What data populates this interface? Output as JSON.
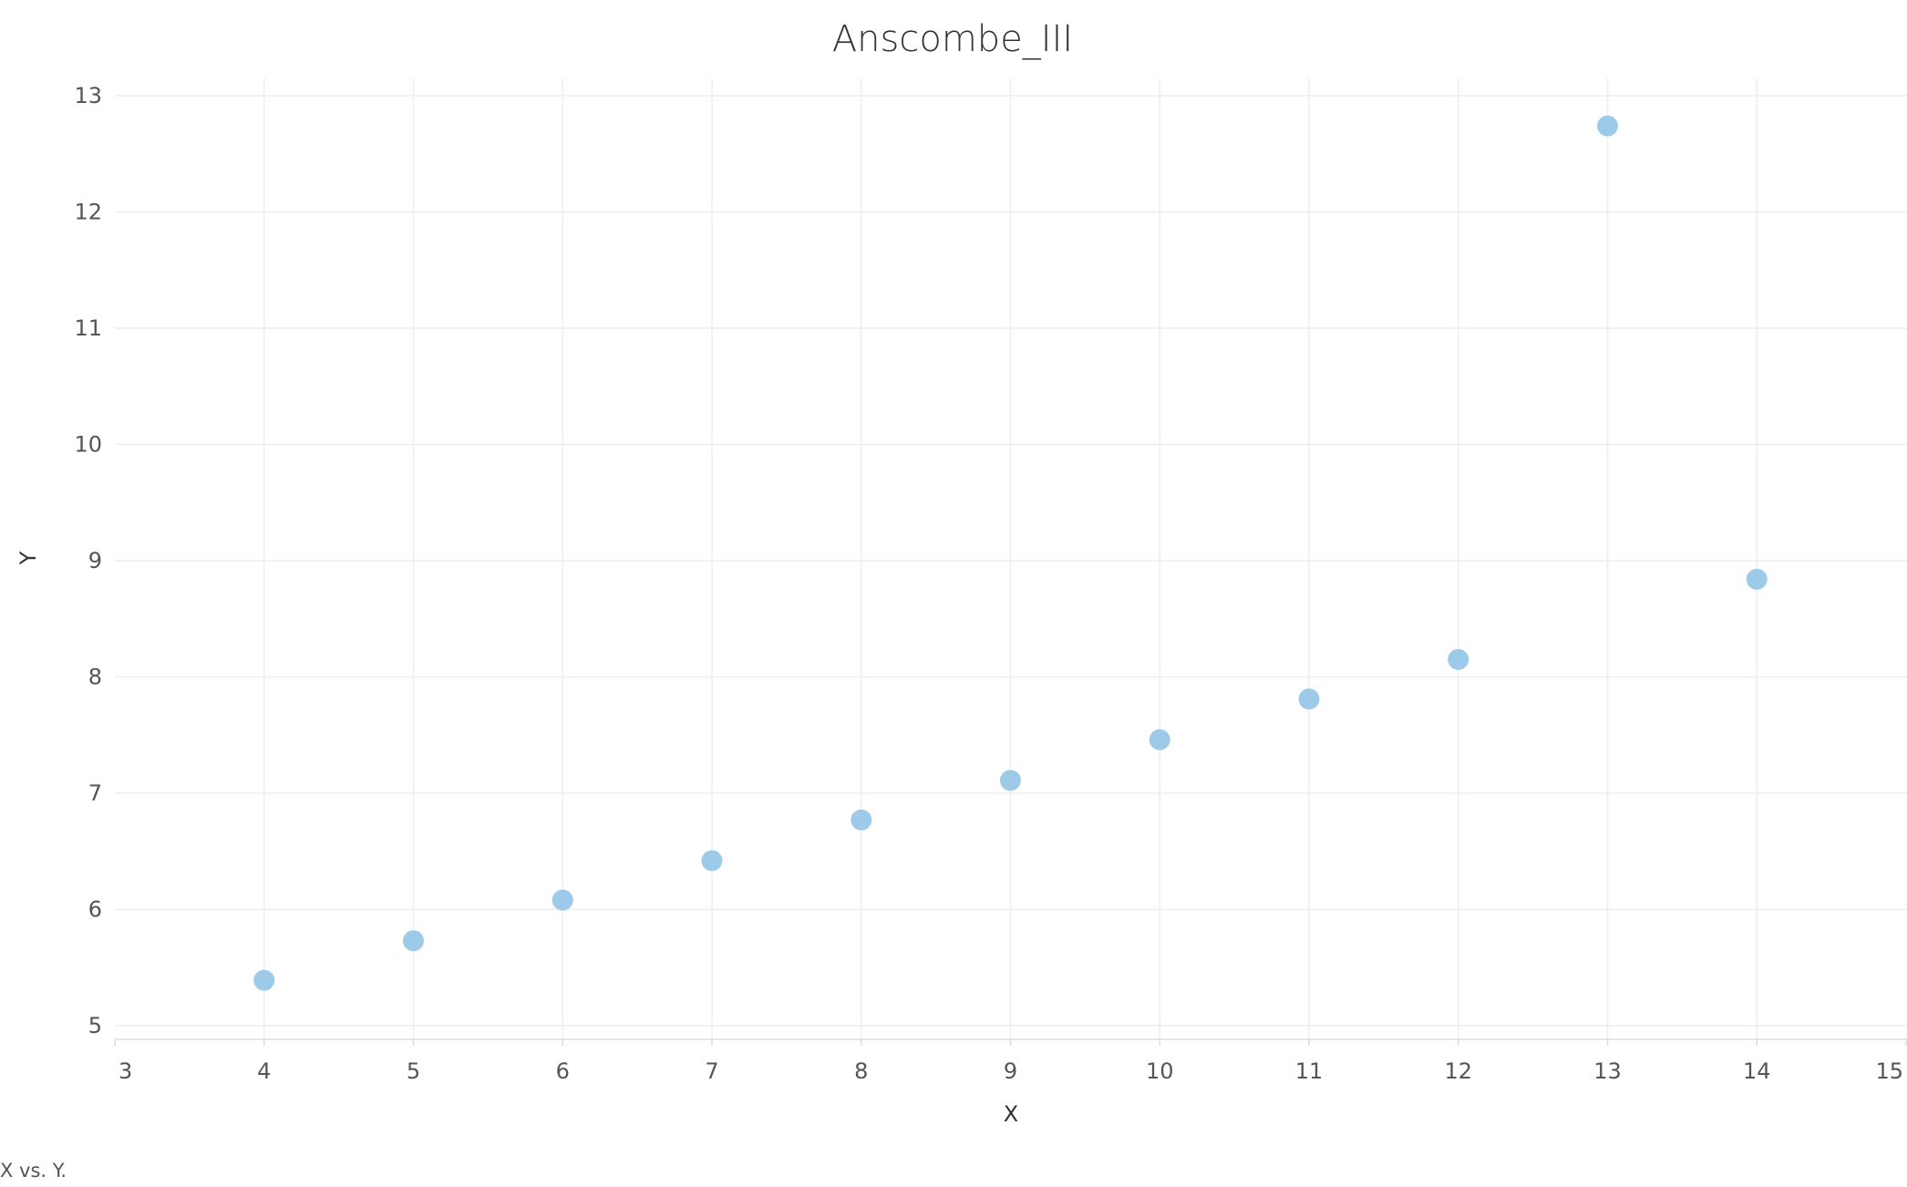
{
  "chart_data": {
    "type": "scatter",
    "title": "Anscombe_III",
    "xlabel": "X",
    "ylabel": "Y",
    "xlim": [
      3,
      15
    ],
    "ylim": [
      5,
      13
    ],
    "x_ticks": [
      3,
      4,
      5,
      6,
      7,
      8,
      9,
      10,
      11,
      12,
      13,
      14,
      15
    ],
    "y_ticks": [
      5,
      6,
      7,
      8,
      9,
      10,
      11,
      12,
      13
    ],
    "grid": true,
    "point_color": "#9ecae9",
    "points": [
      {
        "x": 4,
        "y": 5.39
      },
      {
        "x": 5,
        "y": 5.73
      },
      {
        "x": 6,
        "y": 6.08
      },
      {
        "x": 7,
        "y": 6.42
      },
      {
        "x": 8,
        "y": 6.77
      },
      {
        "x": 9,
        "y": 7.11
      },
      {
        "x": 10,
        "y": 7.46
      },
      {
        "x": 11,
        "y": 7.81
      },
      {
        "x": 12,
        "y": 8.15
      },
      {
        "x": 13,
        "y": 12.74
      },
      {
        "x": 14,
        "y": 8.84
      }
    ]
  },
  "caption": "X vs. Y."
}
